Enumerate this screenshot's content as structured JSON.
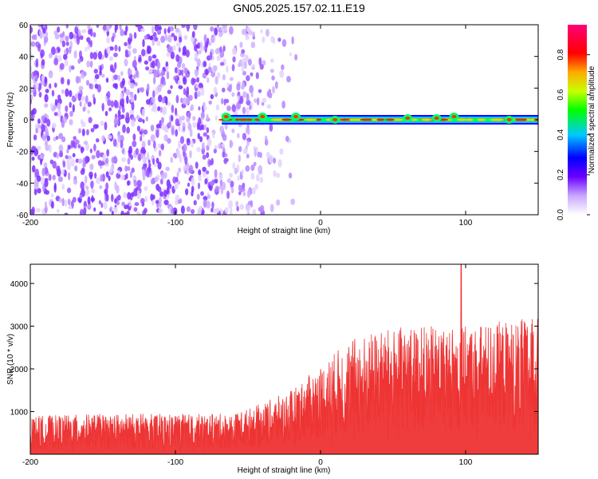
{
  "title": "GN05.2025.157.02.11.E19",
  "chart_data": [
    {
      "type": "heatmap",
      "xlabel": "Height of straight line (km)",
      "ylabel": "Frequency (Hz)",
      "xlim": [
        -200,
        150
      ],
      "ylim": [
        -60,
        60
      ],
      "xticks": [
        -200,
        -100,
        0,
        100
      ],
      "yticks": [
        -60,
        -40,
        -20,
        0,
        20,
        40,
        60
      ],
      "xtick_labels": [
        "-200",
        "-100",
        "0",
        "100"
      ],
      "ytick_labels": [
        "-60",
        "-40",
        "-20",
        "0",
        "20",
        "40",
        "60"
      ],
      "noise_extent_x": [
        -200,
        -35
      ],
      "signal_band": {
        "x_start": -68,
        "x_end": 150,
        "center_freq": 0,
        "peaks": [
          {
            "x": -65,
            "freq": 2
          },
          {
            "x": -40,
            "freq": 2
          },
          {
            "x": -17,
            "freq": 2
          },
          {
            "x": 10,
            "freq": 0
          },
          {
            "x": 60,
            "freq": 1
          },
          {
            "x": 80,
            "freq": 1
          },
          {
            "x": 92,
            "freq": 2
          },
          {
            "x": 130,
            "freq": 0
          }
        ]
      },
      "colorbar": {
        "label": "Normalized spectral amplitude",
        "range": [
          0,
          0.95
        ],
        "ticks": [
          0.0,
          0.2,
          0.4,
          0.6,
          0.8
        ],
        "tick_labels": [
          "0.0",
          "0.2",
          "0.4",
          "0.6",
          "0.8"
        ]
      }
    },
    {
      "type": "area",
      "xlabel": "Height of straight line (km)",
      "ylabel": "SNR (10 * v/v)",
      "xlim": [
        -200,
        150
      ],
      "ylim": [
        0,
        4450
      ],
      "xticks": [
        -200,
        -100,
        0,
        100
      ],
      "yticks": [
        1000,
        2000,
        3000,
        4000
      ],
      "xtick_labels": [
        "-200",
        "-100",
        "0",
        "100"
      ],
      "ytick_labels": [
        "1000",
        "2000",
        "3000",
        "4000"
      ],
      "color": "#ee3333",
      "trend": {
        "x": [
          -200,
          -150,
          -100,
          -60,
          -40,
          -20,
          0,
          20,
          40,
          60,
          80,
          100,
          120,
          150
        ],
        "base": [
          350,
          380,
          380,
          400,
          600,
          800,
          1200,
          1500,
          1700,
          1800,
          1850,
          1900,
          1950,
          2000
        ],
        "peak": [
          900,
          950,
          950,
          950,
          1200,
          1500,
          2100,
          2700,
          2900,
          3000,
          3000,
          3000,
          3100,
          3200
        ]
      },
      "spike": {
        "x": 97,
        "value": 4450
      }
    }
  ]
}
